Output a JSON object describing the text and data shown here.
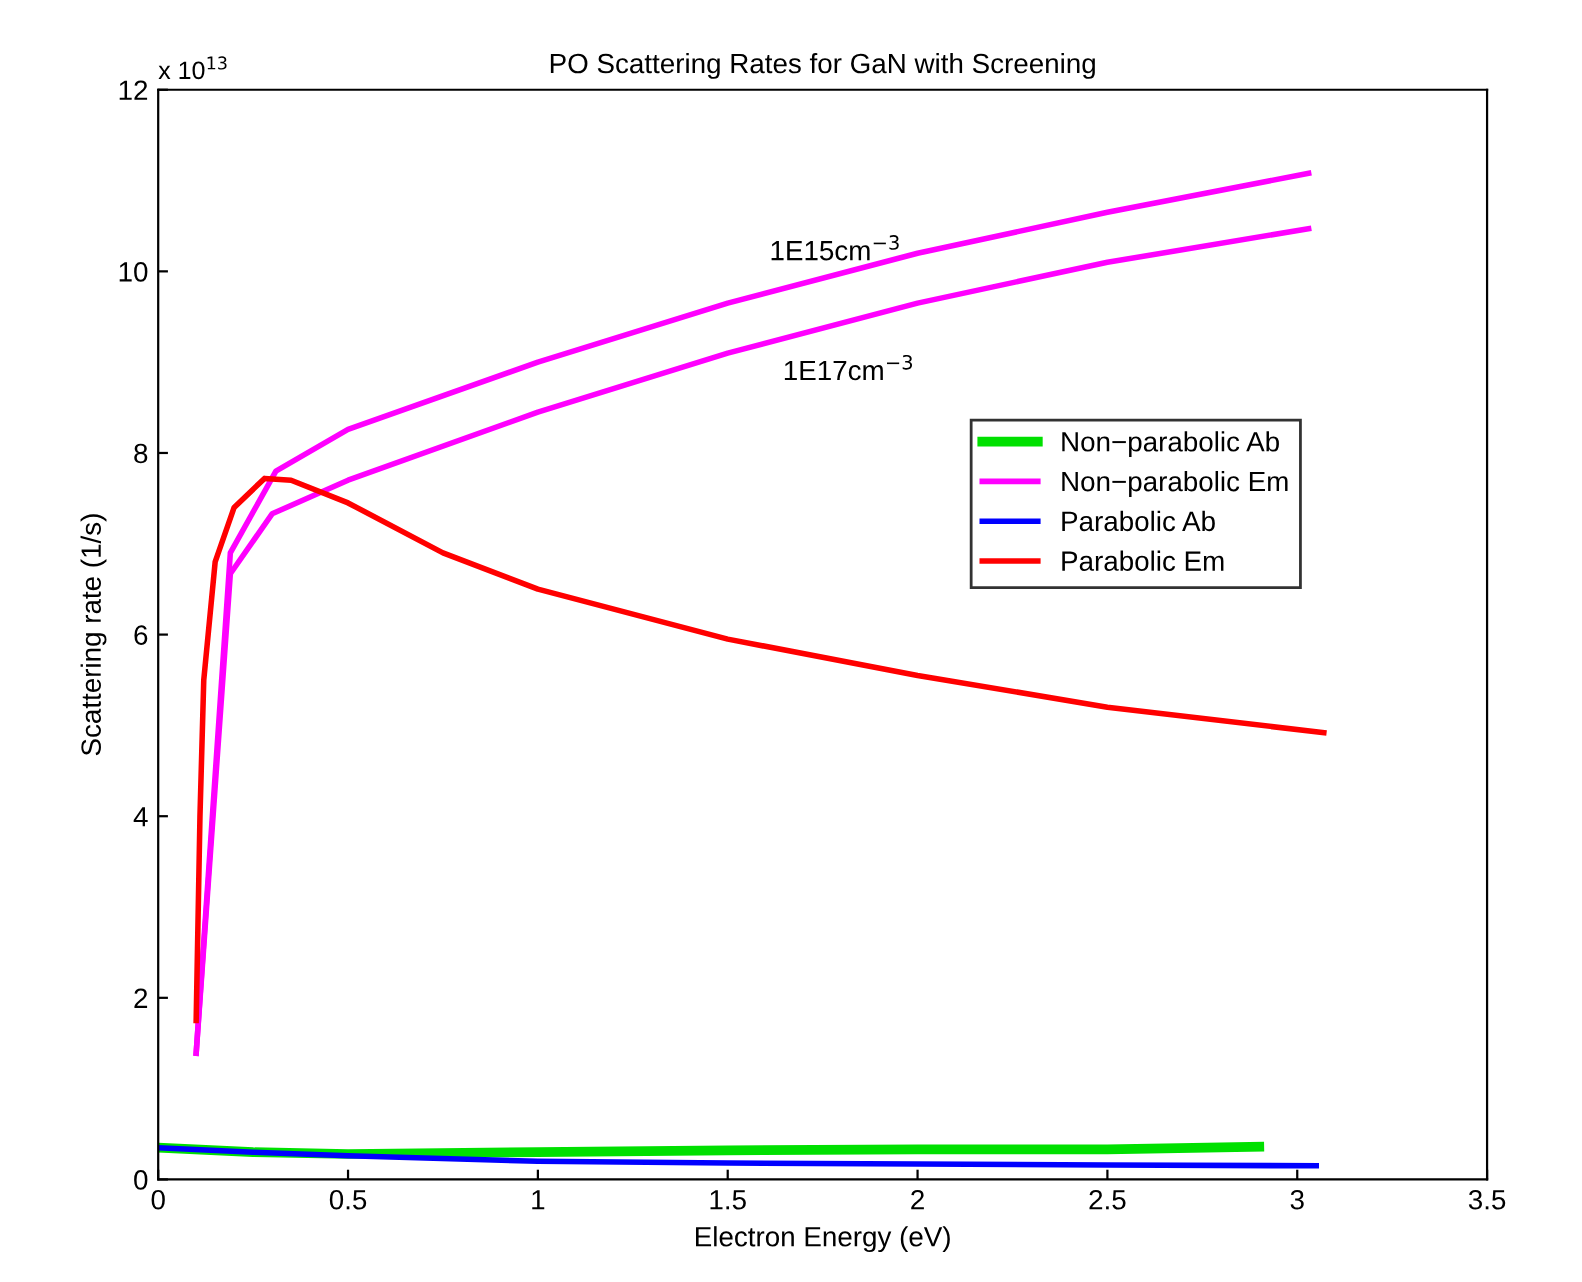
{
  "chart_data": {
    "type": "line",
    "title": "PO Scattering Rates for GaN with Screening",
    "xlabel": "Electron Energy (eV)",
    "ylabel": "Scattering rate (1/s)",
    "xlim": [
      0,
      3.5
    ],
    "xticks": [
      0,
      0.5,
      1,
      1.5,
      2,
      2.5,
      3,
      3.5
    ],
    "ylim": [
      0,
      12
    ],
    "yticks": [
      0,
      2,
      4,
      6,
      8,
      10,
      12
    ],
    "legend": "right",
    "grid": false,
    "annotations": [
      "x 10$^{13}$",
      "1E15cm$^{−3}$",
      "1E17cm$^{−3}$"
    ],
    "series": [
      {
        "name": "Non−parabolic Ab",
        "color": "#00e000",
        "x": [
          0,
          0.25,
          0.5,
          1,
          1.5,
          2,
          2.5,
          2.9
        ],
        "values": [
          0.35,
          0.3,
          0.28,
          0.3,
          0.32,
          0.33,
          0.33,
          0.36
        ]
      },
      {
        "name": "Non−parabolic Em",
        "color": "#ff00ff",
        "x": [
          0.1,
          0.19,
          0.31,
          0.5,
          1,
          1.5,
          2,
          2.5,
          3.03
        ],
        "values": [
          1.39,
          6.9,
          7.8,
          8.26,
          9.0,
          9.65,
          10.2,
          10.65,
          11.08
        ]
      },
      {
        "color": "#ff00ff",
        "x": [
          0.1,
          0.19,
          0.3,
          0.5,
          1,
          1.5,
          2,
          2.5,
          3.03
        ],
        "values": [
          1.39,
          6.67,
          7.33,
          7.7,
          8.45,
          9.1,
          9.65,
          10.1,
          10.47
        ]
      },
      {
        "name": "Parabolic Ab",
        "color": "#0000ff",
        "x": [
          0,
          0.25,
          0.5,
          1,
          1.5,
          2,
          2.5,
          3.05
        ],
        "values": [
          0.35,
          0.3,
          0.26,
          0.2,
          0.18,
          0.17,
          0.16,
          0.15
        ]
      },
      {
        "name": "Parabolic Em",
        "color": "#ff0000",
        "x": [
          0.1,
          0.11,
          0.12,
          0.15,
          0.2,
          0.28,
          0.35,
          0.5,
          0.75,
          1,
          1.5,
          2,
          2.5,
          3.07
        ],
        "values": [
          1.75,
          4,
          5.5,
          6.8,
          7.4,
          7.72,
          7.7,
          7.45,
          6.9,
          6.5,
          5.95,
          5.55,
          5.2,
          4.92
        ]
      }
    ]
  }
}
